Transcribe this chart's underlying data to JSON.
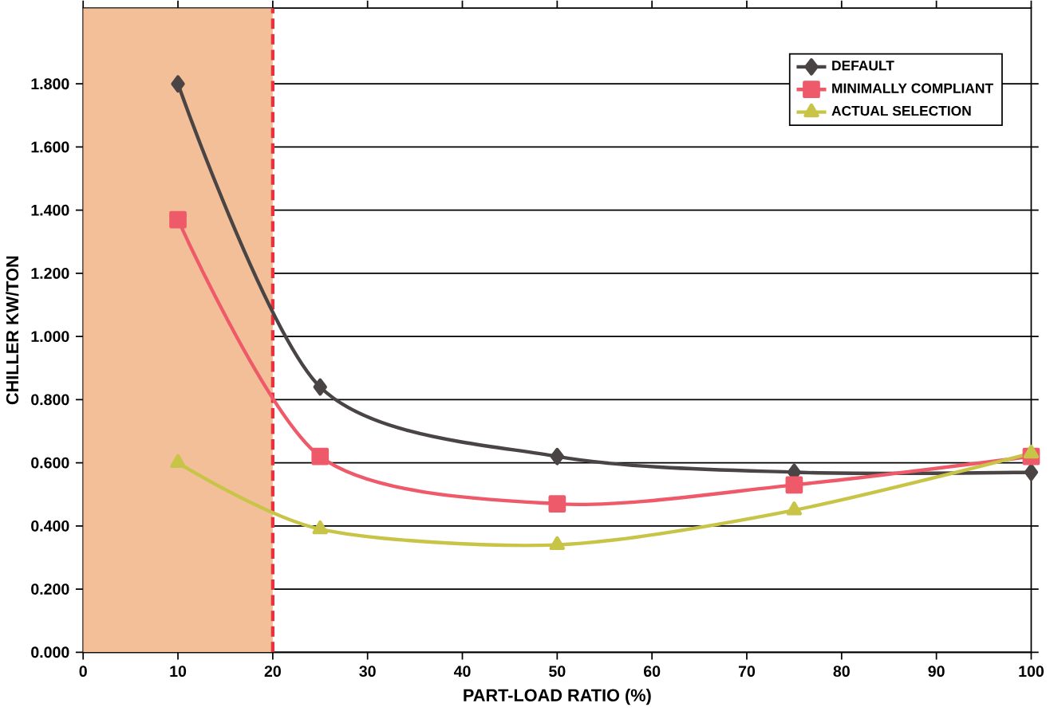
{
  "chart_data": {
    "type": "line",
    "xlabel": "PART-LOAD RATIO (%)",
    "ylabel": "CHILLER KW/TON",
    "x": [
      10,
      25,
      50,
      75,
      100
    ],
    "series": [
      {
        "name": "DEFAULT",
        "color": "#4a4444",
        "marker": "diamond",
        "values": [
          1.8,
          0.84,
          0.62,
          0.57,
          0.57
        ]
      },
      {
        "name": "MINIMALLY COMPLIANT",
        "color": "#ee5a6a",
        "marker": "square",
        "values": [
          1.37,
          0.62,
          0.47,
          0.53,
          0.62
        ]
      },
      {
        "name": "ACTUAL SELECTION",
        "color": "#c8c448",
        "marker": "triangle",
        "values": [
          0.6,
          0.39,
          0.34,
          0.45,
          0.63
        ]
      }
    ],
    "xlim": [
      0,
      100
    ],
    "xticks": [
      0,
      10,
      20,
      30,
      40,
      50,
      60,
      70,
      80,
      90,
      100
    ],
    "ylim": [
      0,
      2.04
    ],
    "yticks": [
      {
        "value": 0,
        "label": "0.000"
      },
      {
        "value": 0.2,
        "label": "0.200"
      },
      {
        "value": 0.4,
        "label": "0.400"
      },
      {
        "value": 0.6,
        "label": "0.600"
      },
      {
        "value": 0.8,
        "label": "0.800"
      },
      {
        "value": 1.0,
        "label": "1.000"
      },
      {
        "value": 1.2,
        "label": "1.200"
      },
      {
        "value": 1.4,
        "label": "1.400"
      },
      {
        "value": 1.6,
        "label": "1.600"
      },
      {
        "value": 1.8,
        "label": "1.800"
      }
    ],
    "grid": "y",
    "legend": "top right",
    "line_style": "solid",
    "ref_lines": [
      {
        "axis": "x",
        "value": 20,
        "color": "#e8323c",
        "line_style": "dashed"
      }
    ],
    "bands": [
      {
        "axis": "x",
        "from": 0,
        "to": 20,
        "color": "#f2bf98"
      }
    ]
  }
}
